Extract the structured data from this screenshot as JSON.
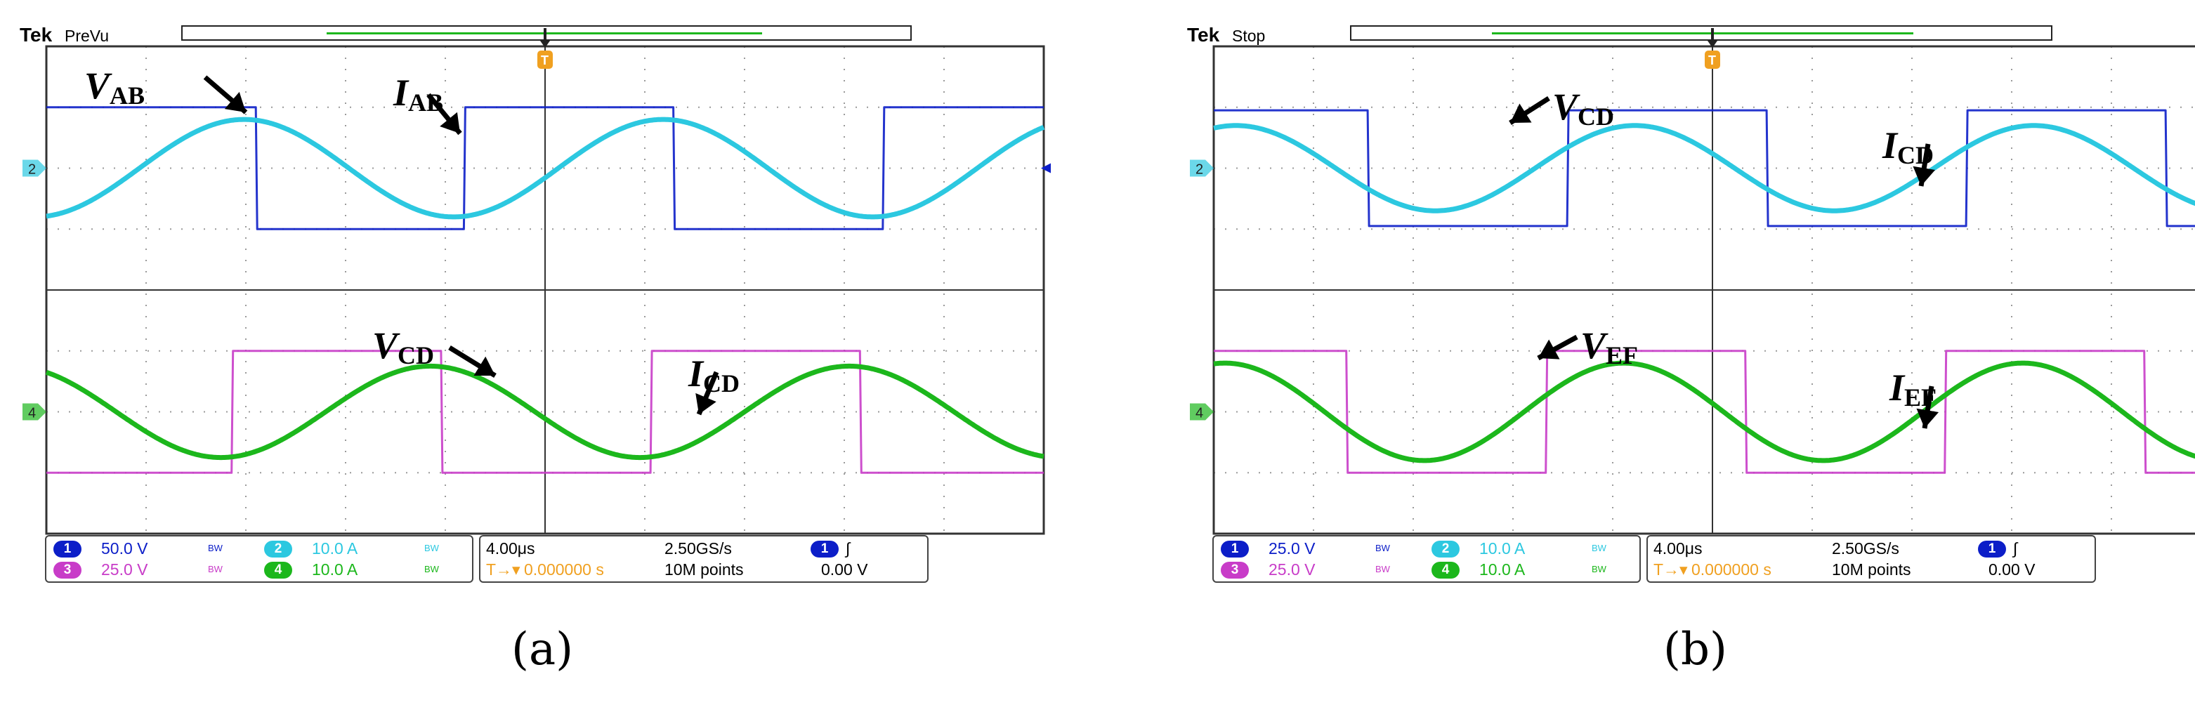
{
  "colors": {
    "ch1": "#0c1ec8",
    "ch2": "#2cc8e0",
    "ch3": "#c83cc8",
    "ch4": "#1cb71c",
    "trigger": "#f0a020",
    "grid": "#9a9a9a",
    "frame": "#333333"
  },
  "chart_data": [
    {
      "type": "line",
      "caption": "(a)",
      "header": {
        "brand": "Tek",
        "mode": "PreVu"
      },
      "x_divisions": 10,
      "y_divisions": 8,
      "waveform_period_div": 4.2,
      "annotations": [
        {
          "name": "V",
          "sub": "AB"
        },
        {
          "name": "I",
          "sub": "AB"
        },
        {
          "name": "V",
          "sub": "CD"
        },
        {
          "name": "I",
          "sub": "CD"
        }
      ],
      "series": [
        {
          "channel": 1,
          "shape": "square",
          "amplitude_div": 1.0,
          "phase_deg": 0
        },
        {
          "channel": 2,
          "shape": "sine",
          "amplitude_div": 0.8,
          "phase_deg": -80
        },
        {
          "channel": 3,
          "shape": "square",
          "amplitude_div": 1.0,
          "phase_deg": 200
        },
        {
          "channel": 4,
          "shape": "sine",
          "amplitude_div": 0.75,
          "phase_deg": 120
        }
      ],
      "status": {
        "ch1": {
          "num": "1",
          "scale": "50.0 V",
          "bw": "BW"
        },
        "ch2": {
          "num": "2",
          "scale": "10.0 A",
          "bw": "BW"
        },
        "ch3": {
          "num": "3",
          "scale": "25.0 V",
          "bw": "BW"
        },
        "ch4": {
          "num": "4",
          "scale": "10.0 A",
          "bw": "BW"
        },
        "timebase": "4.00μs",
        "sample_rate": "2.50GS/s",
        "trigger_pos": "0.000000 s",
        "trigger_prefix": "T→▾",
        "record": "10M points",
        "trig_ch": "1",
        "trig_slope": "∫",
        "trig_level": "0.00 V"
      },
      "markers": {
        "ch2": "2",
        "ch4": "4",
        "trigger": "T"
      }
    },
    {
      "type": "line",
      "caption": "(b)",
      "header": {
        "brand": "Tek",
        "mode": "Stop"
      },
      "x_divisions": 10,
      "y_divisions": 8,
      "waveform_period_div": 4.0,
      "annotations": [
        {
          "name": "V",
          "sub": "CD"
        },
        {
          "name": "I",
          "sub": "CD"
        },
        {
          "name": "V",
          "sub": "EF"
        },
        {
          "name": "I",
          "sub": "EF"
        }
      ],
      "series": [
        {
          "channel": 1,
          "shape": "square",
          "amplitude_div": 0.95,
          "phase_deg": 40
        },
        {
          "channel": 2,
          "shape": "sine",
          "amplitude_div": 0.7,
          "phase_deg": 70
        },
        {
          "channel": 3,
          "shape": "square",
          "amplitude_div": 1.0,
          "phase_deg": 60
        },
        {
          "channel": 4,
          "shape": "sine",
          "amplitude_div": 0.8,
          "phase_deg": 80
        }
      ],
      "status": {
        "ch1": {
          "num": "1",
          "scale": "25.0 V",
          "bw": "BW"
        },
        "ch2": {
          "num": "2",
          "scale": "10.0 A",
          "bw": "BW"
        },
        "ch3": {
          "num": "3",
          "scale": "25.0 V",
          "bw": "BW"
        },
        "ch4": {
          "num": "4",
          "scale": "10.0 A",
          "bw": "BW"
        },
        "timebase": "4.00μs",
        "sample_rate": "2.50GS/s",
        "trigger_pos": "0.000000 s",
        "trigger_prefix": "T→▾",
        "record": "10M points",
        "trig_ch": "1",
        "trig_slope": "∫",
        "trig_level": "0.00 V"
      },
      "markers": {
        "ch2": "2",
        "ch4": "4",
        "trigger": "T"
      }
    }
  ]
}
